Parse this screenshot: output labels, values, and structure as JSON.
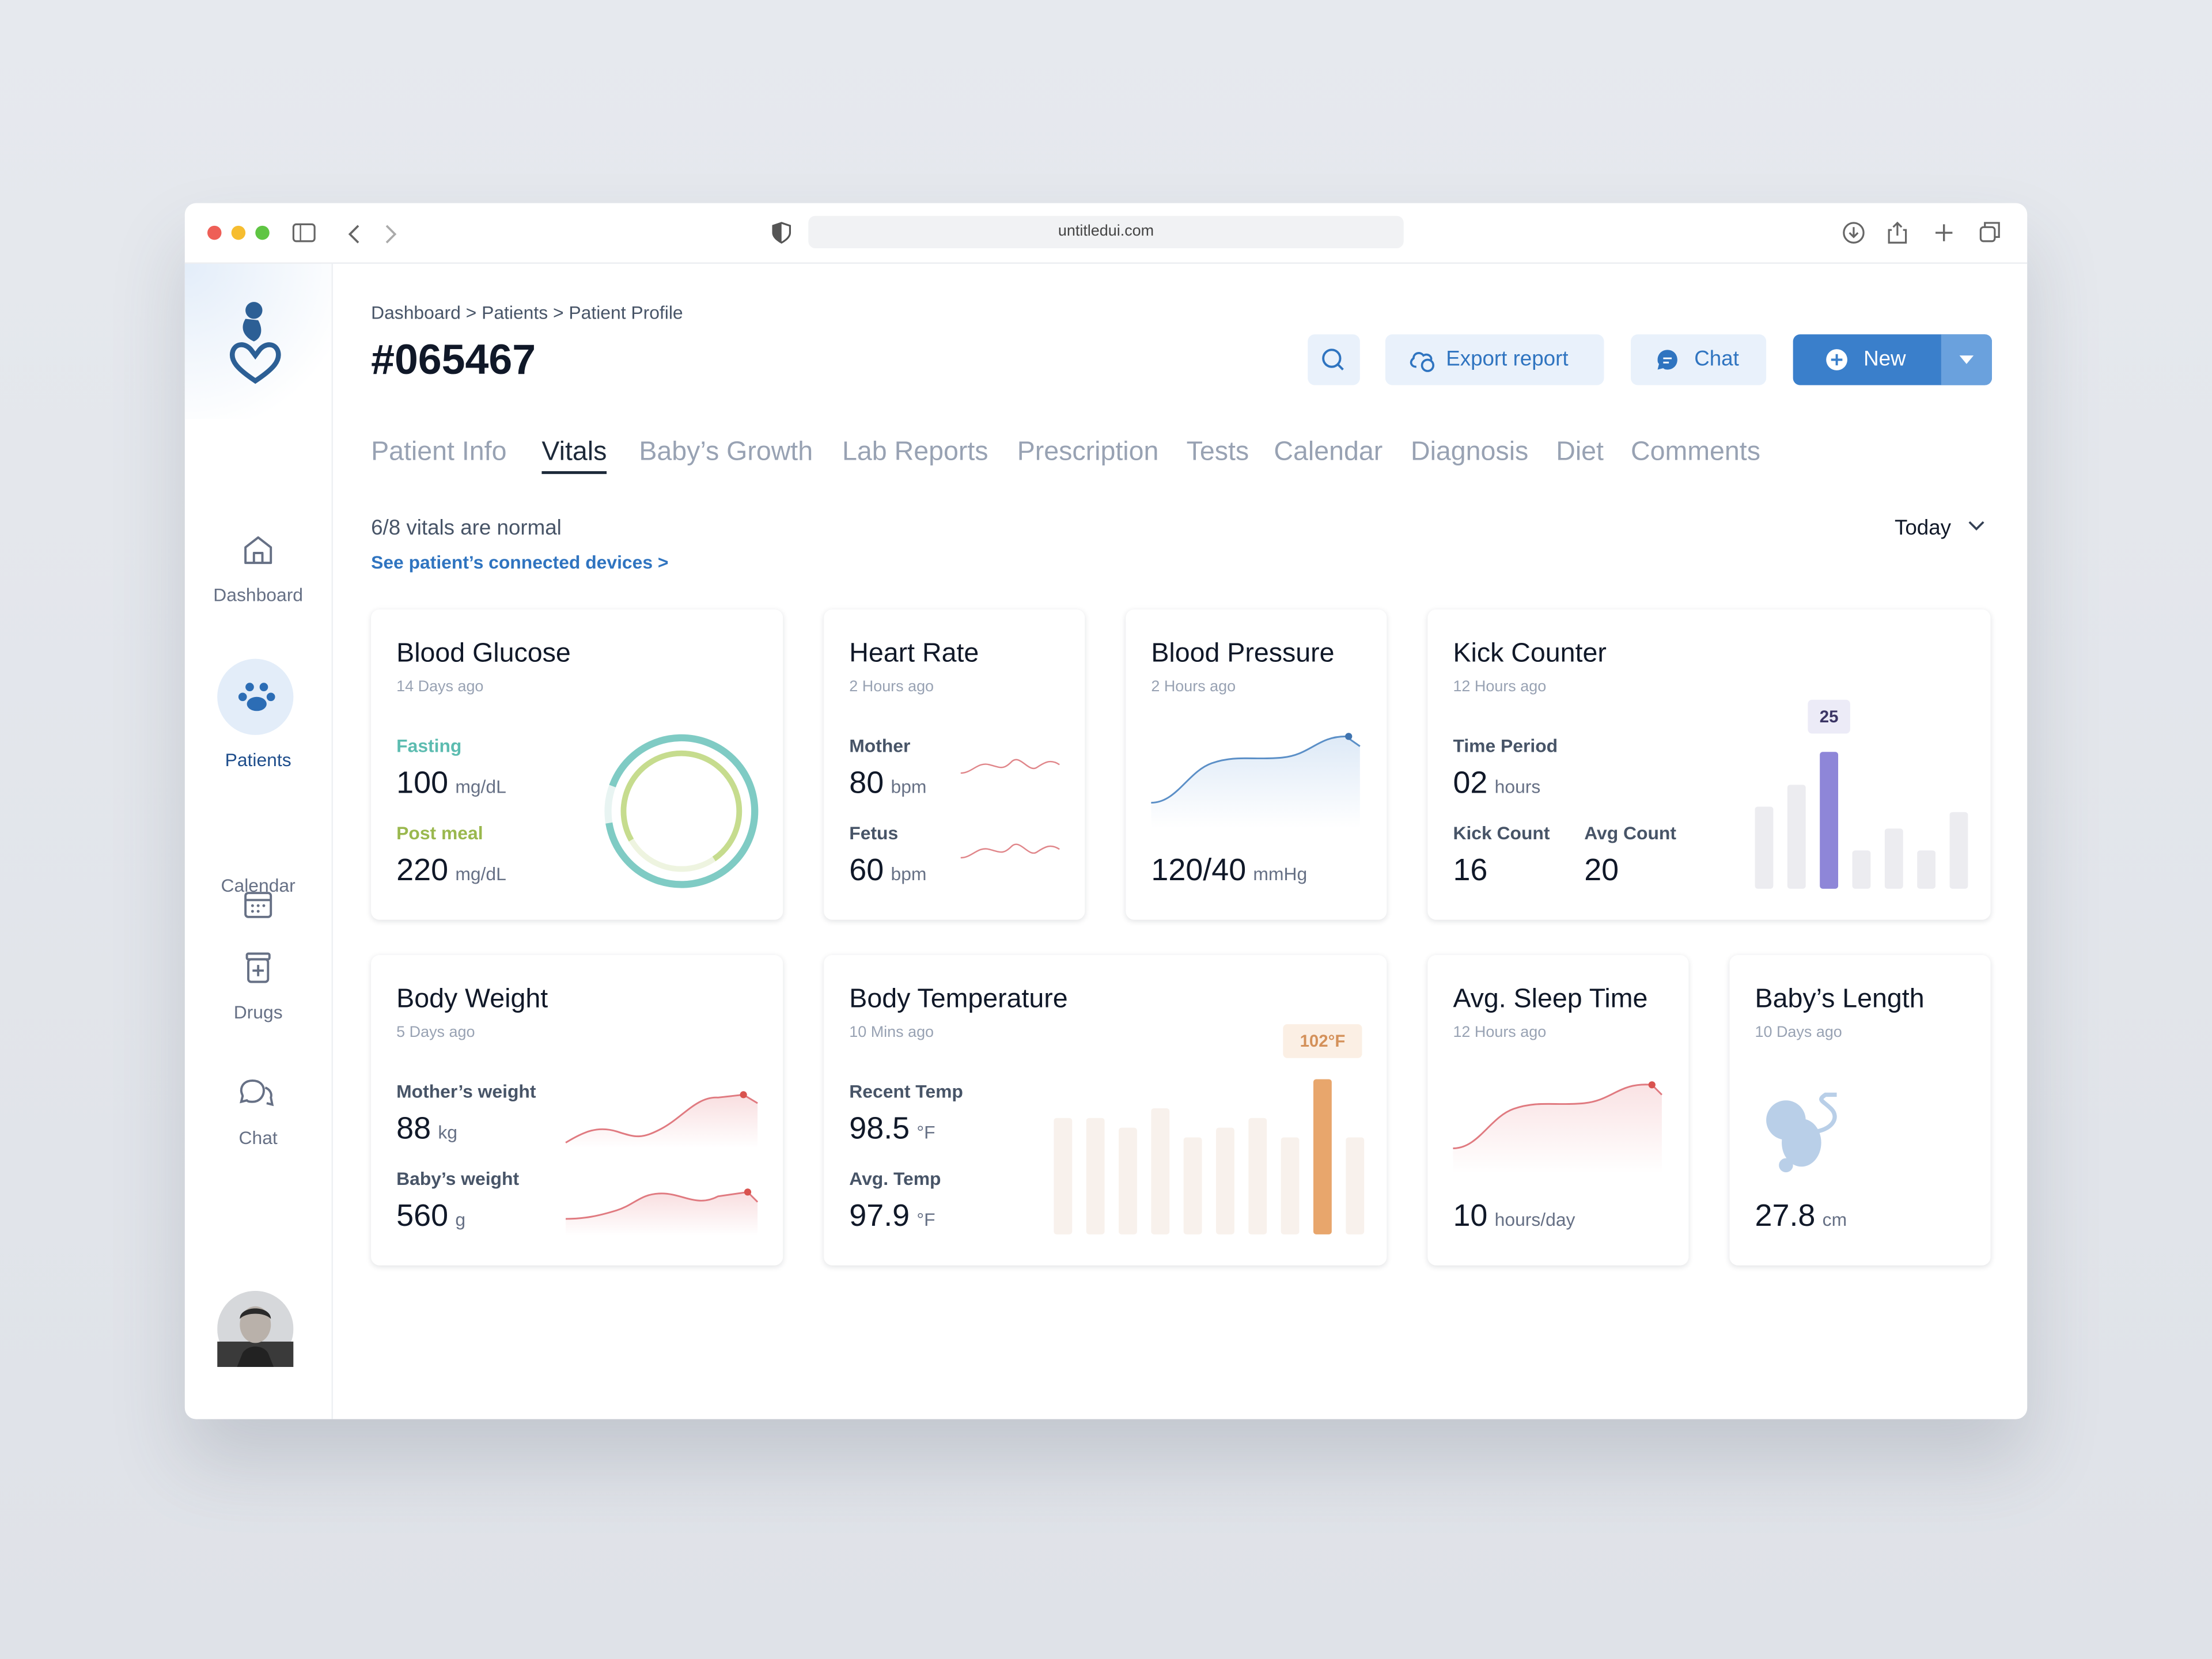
{
  "browser": {
    "url": "untitledui.com"
  },
  "sidebar": {
    "nav": [
      "Dashboard",
      "Patients",
      "Calendar",
      "Drugs",
      "Chat"
    ],
    "active": 1
  },
  "header": {
    "breadcrumb": "Dashboard > Patients > Patient Profile",
    "title": "#065467",
    "buttons": {
      "export": "Export report",
      "chat": "Chat",
      "new": "New"
    }
  },
  "tabs": {
    "items": [
      "Patient Info",
      "Vitals",
      "Baby’s Growth",
      "Lab Reports",
      "Prescription",
      "Tests",
      "Calendar",
      "Diagnosis",
      "Diet",
      "Comments"
    ],
    "active": 1
  },
  "summary": {
    "status": "6/8 vitals are normal",
    "link": "See patient’s connected devices >",
    "period": "Today"
  },
  "cards": {
    "blood_glucose": {
      "title": "Blood Glucose",
      "time": "14 Days ago",
      "fasting_label": "Fasting",
      "fasting": 100,
      "post_label": "Post meal",
      "post": 220,
      "unit": "mg/dL"
    },
    "heart_rate": {
      "title": "Heart Rate",
      "time": "2 Hours ago",
      "mother_label": "Mother",
      "mother": 80,
      "fetus_label": "Fetus",
      "fetus": 60,
      "unit": "bpm"
    },
    "blood_pressure": {
      "title": "Blood Pressure",
      "time": "2 Hours ago",
      "value": "120/40",
      "unit": "mmHg"
    },
    "kick_counter": {
      "title": "Kick Counter",
      "time": "12 Hours ago",
      "period_label": "Time Period",
      "period": "02",
      "period_unit": "hours",
      "count_label": "Kick Count",
      "count": 16,
      "avg_label": "Avg Count",
      "avg": 20,
      "chart": {
        "type": "bar",
        "values": [
          15,
          19,
          25,
          7,
          11,
          7,
          14
        ],
        "highlight": 2,
        "ylim": [
          0,
          25
        ],
        "color": "#ececf0",
        "highlight_color": "#8e86d8"
      }
    },
    "body_weight": {
      "title": "Body Weight",
      "time": "5 Days ago",
      "mother_label": "Mother’s weight",
      "mother": 88,
      "mother_unit": "kg",
      "baby_label": "Baby’s weight",
      "baby": 560,
      "baby_unit": "g"
    },
    "body_temperature": {
      "title": "Body Temperature",
      "time": "10 Mins ago",
      "recent_label": "Recent Temp",
      "recent": 98.5,
      "avg_label": "Avg. Temp",
      "avg": 97.9,
      "unit": "°F",
      "chart": {
        "type": "bar",
        "values": [
          100,
          100,
          99.5,
          100.5,
          99,
          99.5,
          100,
          99,
          102,
          99
        ],
        "value_labels": [
          null,
          null,
          null,
          null,
          null,
          null,
          null,
          null,
          "102°F",
          null
        ],
        "highlight": 8,
        "ylim": [
          94,
          102
        ],
        "color": "#f8f1ec",
        "highlight_color": "#e8a66c"
      }
    },
    "sleep": {
      "title": "Avg. Sleep Time",
      "time": "12 Hours ago",
      "value": 10,
      "unit": "hours/day"
    },
    "baby_length": {
      "title": "Baby’s Length",
      "time": "10 Days ago",
      "value": 27.8,
      "unit": "cm"
    }
  }
}
